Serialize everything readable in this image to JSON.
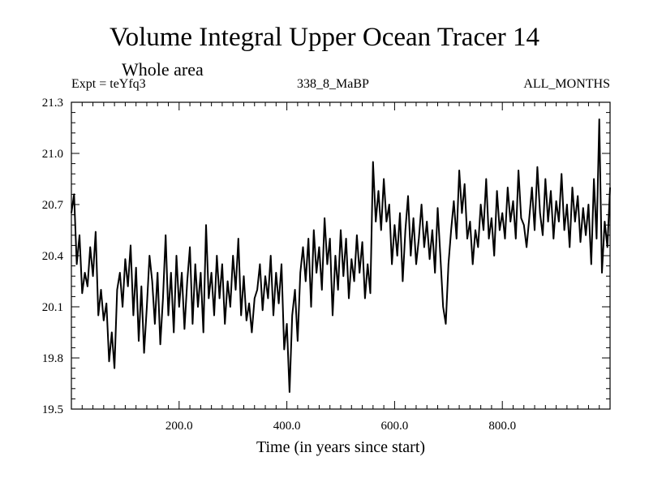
{
  "header": {
    "title": "Volume Integral Upper Ocean Tracer 14",
    "subtitle": "Whole area",
    "experiment": "Expt = teYfq3",
    "run_id": "338_8_MaBP",
    "months": "ALL_MONTHS"
  },
  "chart_data": {
    "type": "line",
    "title": "Volume Integral Upper Ocean Tracer 14",
    "subtitle": "Whole area",
    "xlabel": "Time (in years since start)",
    "ylabel": "",
    "xlim": [
      0,
      1000
    ],
    "ylim": [
      19.5,
      21.3
    ],
    "x_ticks": [
      200,
      400,
      600,
      800
    ],
    "x_tick_labels": [
      "200.0",
      "400.0",
      "600.0",
      "800.0"
    ],
    "y_ticks": [
      19.5,
      19.8,
      20.1,
      20.4,
      20.7,
      21.0,
      21.3
    ],
    "y_tick_labels": [
      "19.5",
      "19.8",
      "20.1",
      "20.4",
      "20.7",
      "21.0",
      "21.3"
    ],
    "grid": false,
    "line_color": "#000000",
    "series": [
      {
        "name": "Tracer 14",
        "x": [
          0,
          5,
          10,
          15,
          20,
          25,
          30,
          35,
          40,
          45,
          50,
          55,
          60,
          65,
          70,
          75,
          80,
          85,
          90,
          95,
          100,
          105,
          110,
          115,
          120,
          125,
          130,
          135,
          140,
          145,
          150,
          155,
          160,
          165,
          170,
          175,
          180,
          185,
          190,
          195,
          200,
          205,
          210,
          215,
          220,
          225,
          230,
          235,
          240,
          245,
          250,
          255,
          260,
          265,
          270,
          275,
          280,
          285,
          290,
          295,
          300,
          305,
          310,
          315,
          320,
          325,
          330,
          335,
          340,
          345,
          350,
          355,
          360,
          365,
          370,
          375,
          380,
          385,
          390,
          395,
          400,
          405,
          410,
          415,
          420,
          425,
          430,
          435,
          440,
          445,
          450,
          455,
          460,
          465,
          470,
          475,
          480,
          485,
          490,
          495,
          500,
          505,
          510,
          515,
          520,
          525,
          530,
          535,
          540,
          545,
          550,
          555,
          560,
          565,
          570,
          575,
          580,
          585,
          590,
          595,
          600,
          605,
          610,
          615,
          620,
          625,
          630,
          635,
          640,
          645,
          650,
          655,
          660,
          665,
          670,
          675,
          680,
          685,
          690,
          695,
          700,
          705,
          710,
          715,
          720,
          725,
          730,
          735,
          740,
          745,
          750,
          755,
          760,
          765,
          770,
          775,
          780,
          785,
          790,
          795,
          800,
          805,
          810,
          815,
          820,
          825,
          830,
          835,
          840,
          845,
          850,
          855,
          860,
          865,
          870,
          875,
          880,
          885,
          890,
          895,
          900,
          905,
          910,
          915,
          920,
          925,
          930,
          935,
          940,
          945,
          950,
          955,
          960,
          965,
          970,
          975,
          980,
          985,
          990,
          995,
          1000
        ],
        "values": [
          20.65,
          20.76,
          20.35,
          20.52,
          20.18,
          20.3,
          20.22,
          20.45,
          20.28,
          20.54,
          20.05,
          20.2,
          20.02,
          20.12,
          19.78,
          19.95,
          19.74,
          20.2,
          20.3,
          20.1,
          20.38,
          20.22,
          20.46,
          20.05,
          20.33,
          19.9,
          20.22,
          19.83,
          20.1,
          20.4,
          20.25,
          20.0,
          20.3,
          19.88,
          20.15,
          20.52,
          20.05,
          20.3,
          19.95,
          20.4,
          20.1,
          20.3,
          19.97,
          20.25,
          20.45,
          20.0,
          20.35,
          20.1,
          20.3,
          19.95,
          20.58,
          20.15,
          20.3,
          20.05,
          20.4,
          20.15,
          20.35,
          20.0,
          20.25,
          20.1,
          20.4,
          20.2,
          20.5,
          20.05,
          20.28,
          20.02,
          20.12,
          19.95,
          20.15,
          20.2,
          20.35,
          20.08,
          20.28,
          20.15,
          20.4,
          20.05,
          20.3,
          20.12,
          20.35,
          19.85,
          20.0,
          19.6,
          20.05,
          20.2,
          19.9,
          20.3,
          20.45,
          20.25,
          20.5,
          20.1,
          20.55,
          20.3,
          20.45,
          20.2,
          20.62,
          20.35,
          20.5,
          20.05,
          20.4,
          20.2,
          20.55,
          20.28,
          20.5,
          20.15,
          20.38,
          20.25,
          20.52,
          20.3,
          20.48,
          20.15,
          20.35,
          20.18,
          20.95,
          20.6,
          20.78,
          20.55,
          20.85,
          20.6,
          20.7,
          20.35,
          20.58,
          20.4,
          20.65,
          20.25,
          20.55,
          20.75,
          20.4,
          20.62,
          20.35,
          20.5,
          20.7,
          20.45,
          20.6,
          20.38,
          20.55,
          20.3,
          20.68,
          20.4,
          20.1,
          20.0,
          20.35,
          20.55,
          20.72,
          20.5,
          20.9,
          20.65,
          20.82,
          20.5,
          20.6,
          20.35,
          20.55,
          20.45,
          20.7,
          20.55,
          20.85,
          20.5,
          20.62,
          20.4,
          20.78,
          20.55,
          20.65,
          20.5,
          20.8,
          20.6,
          20.72,
          20.5,
          20.9,
          20.62,
          20.58,
          20.45,
          20.62,
          20.8,
          20.55,
          20.92,
          20.65,
          20.52,
          20.85,
          20.6,
          20.78,
          20.5,
          20.72,
          20.6,
          20.88,
          20.55,
          20.7,
          20.45,
          20.8,
          20.6,
          20.75,
          20.48,
          20.68,
          20.52,
          20.7,
          20.35,
          20.85,
          20.5,
          21.2,
          20.3,
          20.6,
          20.45,
          20.8
        ]
      }
    ]
  }
}
